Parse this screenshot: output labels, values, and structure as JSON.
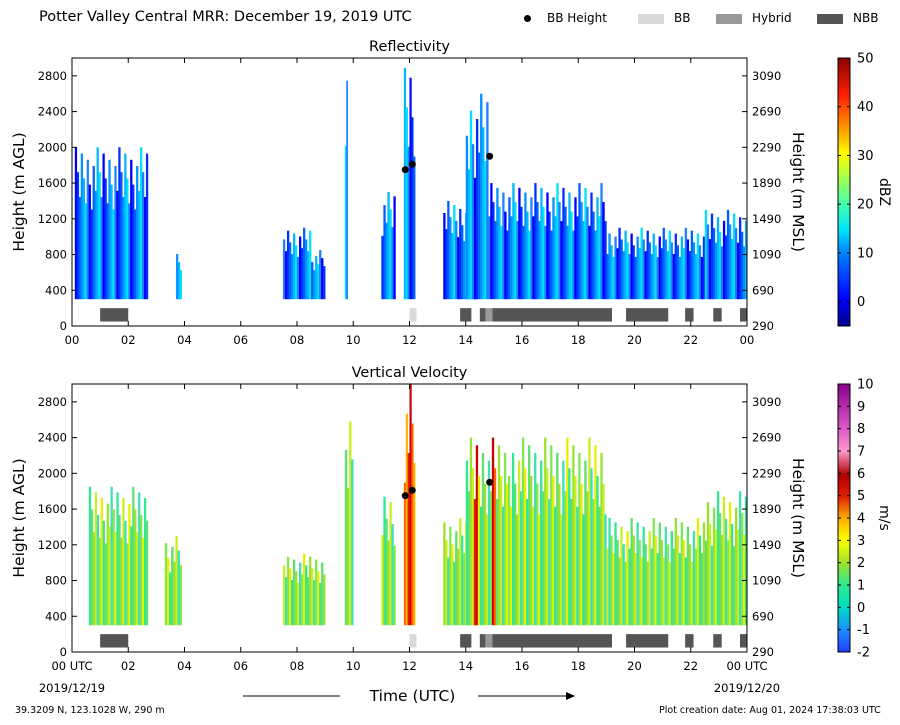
{
  "header": {
    "title": "Potter Valley Central MRR:  December 19, 2019 UTC",
    "legend": [
      {
        "label": "BB Height",
        "marker": "dot",
        "color": "#000000"
      },
      {
        "label": "BB",
        "marker": "bar",
        "color": "#d9d9d9"
      },
      {
        "label": "Hybrid",
        "marker": "bar",
        "color": "#999999"
      },
      {
        "label": "NBB",
        "marker": "bar",
        "color": "#555555"
      }
    ]
  },
  "footer": {
    "location": "39.3209 N, 123.1028 W, 290 m",
    "created": "Plot creation date: Aug 01, 2024 17:38:03 UTC"
  },
  "chart_data": [
    {
      "type": "heatmap",
      "title": "Reflectivity",
      "ylabel": "Height (m AGL)",
      "ylabel_right": "Height (m MSL)",
      "ylim": [
        0,
        3000
      ],
      "xlim": [
        0,
        24
      ],
      "yticks": [
        0,
        400,
        800,
        1200,
        1600,
        2000,
        2400,
        2800
      ],
      "yticks_right": [
        "290",
        "690",
        "1090",
        "1490",
        "1890",
        "2290",
        "2690",
        "3090"
      ],
      "xticks": [
        "00",
        "02",
        "04",
        "06",
        "08",
        "10",
        "12",
        "14",
        "16",
        "18",
        "20",
        "22",
        "00"
      ],
      "colorbar": {
        "label": "dBZ",
        "min": -5,
        "max": 50,
        "ticks": [
          0,
          10,
          20,
          30,
          40,
          50
        ]
      },
      "echo_segments": [
        {
          "start": 0.1,
          "end": 2.7,
          "top": 2000
        },
        {
          "start": 3.7,
          "end": 3.9,
          "top": 850
        },
        {
          "start": 7.5,
          "end": 8.5,
          "top": 1100
        },
        {
          "start": 8.5,
          "end": 9.0,
          "top": 850
        },
        {
          "start": 9.7,
          "end": 9.8,
          "top": 2850
        },
        {
          "start": 11.0,
          "end": 11.5,
          "top": 1500
        },
        {
          "start": 11.8,
          "end": 12.2,
          "top": 3000
        },
        {
          "start": 13.2,
          "end": 14.4,
          "top": 1400
        },
        {
          "start": 14.0,
          "end": 14.8,
          "top": 2600
        },
        {
          "start": 14.8,
          "end": 19.0,
          "top": 1600
        },
        {
          "start": 19.0,
          "end": 22.5,
          "top": 1100
        },
        {
          "start": 22.5,
          "end": 24.0,
          "top": 1300
        }
      ],
      "bb_height": [
        {
          "t": 11.85,
          "h": 1750
        },
        {
          "t": 12.1,
          "h": 1810
        },
        {
          "t": 14.85,
          "h": 1900
        }
      ],
      "bb_classification": [
        {
          "start": 1.0,
          "end": 2.0,
          "type": "NBB"
        },
        {
          "start": 12.0,
          "end": 12.25,
          "type": "BB"
        },
        {
          "start": 13.8,
          "end": 14.2,
          "type": "NBB"
        },
        {
          "start": 14.5,
          "end": 14.7,
          "type": "NBB"
        },
        {
          "start": 14.7,
          "end": 14.95,
          "type": "Hybrid"
        },
        {
          "start": 14.95,
          "end": 19.2,
          "type": "NBB"
        },
        {
          "start": 19.7,
          "end": 21.2,
          "type": "NBB"
        },
        {
          "start": 21.8,
          "end": 22.1,
          "type": "NBB"
        },
        {
          "start": 22.8,
          "end": 23.1,
          "type": "NBB"
        },
        {
          "start": 23.75,
          "end": 24.0,
          "type": "NBB"
        }
      ]
    },
    {
      "type": "heatmap",
      "title": "Vertical Velocity",
      "ylabel": "Height (m AGL)",
      "ylabel_right": "Height (m MSL)",
      "xlabel": "Time (UTC)",
      "ylim": [
        0,
        3000
      ],
      "xlim": [
        0,
        24
      ],
      "yticks": [
        0,
        400,
        800,
        1200,
        1600,
        2000,
        2400,
        2800
      ],
      "yticks_right": [
        "290",
        "690",
        "1090",
        "1490",
        "1890",
        "2290",
        "2690",
        "3090"
      ],
      "xticks": [
        "00 UTC",
        "02",
        "04",
        "06",
        "08",
        "10",
        "12",
        "14",
        "16",
        "18",
        "20",
        "22",
        "00 UTC"
      ],
      "start_date": "2019/12/19",
      "end_date": "2019/12/20",
      "colorbar": {
        "label": "m/s",
        "min": -2,
        "max": 10,
        "ticks": [
          -2,
          -1,
          0,
          1,
          2,
          3,
          4,
          5,
          6,
          7,
          8,
          9,
          10
        ]
      },
      "echo_segments": [
        {
          "start": 0.6,
          "end": 2.7,
          "top": 1850
        },
        {
          "start": 3.3,
          "end": 3.9,
          "top": 1300
        },
        {
          "start": 7.5,
          "end": 9.0,
          "top": 1100
        },
        {
          "start": 9.7,
          "end": 10.0,
          "top": 2900
        },
        {
          "start": 11.0,
          "end": 11.5,
          "top": 1800
        },
        {
          "start": 11.8,
          "end": 12.2,
          "top": 3000
        },
        {
          "start": 13.2,
          "end": 14.4,
          "top": 1500
        },
        {
          "start": 14.0,
          "end": 15.5,
          "top": 2400
        },
        {
          "start": 15.5,
          "end": 19.0,
          "top": 2400
        },
        {
          "start": 19.0,
          "end": 22.5,
          "top": 1500
        },
        {
          "start": 22.5,
          "end": 24.0,
          "top": 1800
        }
      ],
      "bb_height": [
        {
          "t": 11.85,
          "h": 1750
        },
        {
          "t": 12.1,
          "h": 1810
        },
        {
          "t": 14.85,
          "h": 1900
        }
      ],
      "bb_classification": [
        {
          "start": 1.0,
          "end": 2.0,
          "type": "NBB"
        },
        {
          "start": 12.0,
          "end": 12.25,
          "type": "BB"
        },
        {
          "start": 13.8,
          "end": 14.2,
          "type": "NBB"
        },
        {
          "start": 14.5,
          "end": 14.7,
          "type": "NBB"
        },
        {
          "start": 14.7,
          "end": 14.95,
          "type": "Hybrid"
        },
        {
          "start": 14.95,
          "end": 19.2,
          "type": "NBB"
        },
        {
          "start": 19.7,
          "end": 21.2,
          "type": "NBB"
        },
        {
          "start": 21.8,
          "end": 22.1,
          "type": "NBB"
        },
        {
          "start": 22.8,
          "end": 23.1,
          "type": "NBB"
        },
        {
          "start": 23.75,
          "end": 24.0,
          "type": "NBB"
        }
      ]
    }
  ]
}
